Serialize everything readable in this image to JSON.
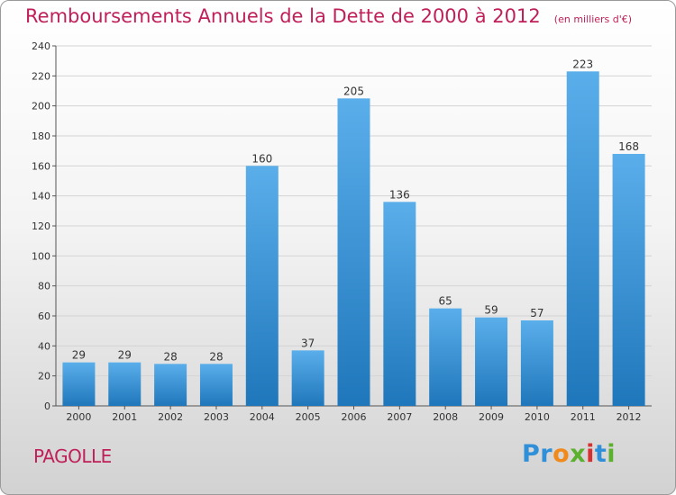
{
  "chart_data": {
    "type": "bar",
    "title": "Remboursements Annuels de la Dette de 2000 à 2012",
    "unit": "(en milliers d'€)",
    "categories": [
      "2000",
      "2001",
      "2002",
      "2003",
      "2004",
      "2005",
      "2006",
      "2007",
      "2008",
      "2009",
      "2010",
      "2011",
      "2012"
    ],
    "values": [
      29,
      29,
      28,
      28,
      160,
      37,
      205,
      136,
      65,
      59,
      57,
      223,
      168
    ],
    "ylim": [
      0,
      240
    ],
    "yticks": [
      0,
      20,
      40,
      60,
      80,
      100,
      120,
      140,
      160,
      180,
      200,
      220,
      240
    ],
    "xlabel": "",
    "ylabel": "",
    "bar_color_top": "#5aaeea",
    "bar_color_bottom": "#1f77bb"
  },
  "place": "PAGOLLE",
  "brand": {
    "letters": [
      "P",
      "r",
      "o",
      "x",
      "i",
      "t",
      "i"
    ],
    "colors": [
      "#2f8fd8",
      "#2f8fd8",
      "#f08a1c",
      "#5cb030",
      "#d83030",
      "#2f8fd8",
      "#5cb030"
    ]
  }
}
